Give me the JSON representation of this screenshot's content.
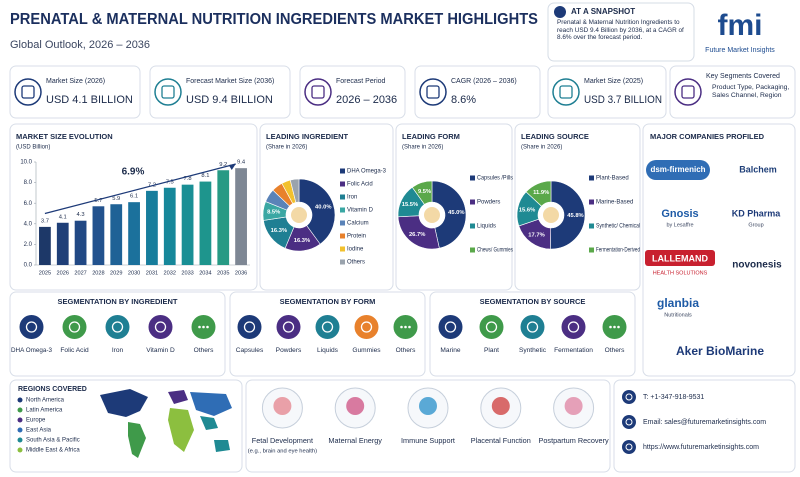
{
  "header": {
    "title": "PRENATAL & MATERNAL NUTRITION INGREDIENTS MARKET HIGHLIGHTS",
    "subtitle": "Global Outlook, 2026 – 2036"
  },
  "snapshot": {
    "title": "AT A SNAPSHOT",
    "text": "Prenatal & Maternal Nutrition Ingredients to reach USD 9.4 Billion by 2036, at a CAGR of 8.6% over the forecast period."
  },
  "logo": {
    "mark": "fmi",
    "name": "Future Market Insights"
  },
  "kpis": [
    {
      "label": "Market Size (2026)",
      "value": "USD 4.1 BILLION"
    },
    {
      "label": "Forecast Market Size (2036)",
      "value": "USD 9.4 BILLION"
    },
    {
      "label": "Forecast Period",
      "value": "2026 – 2036"
    },
    {
      "label": "CAGR (2026 – 2036)",
      "value": "8.6%"
    },
    {
      "label": "Market Size (2025)",
      "value": "USD 3.7 BILLION"
    },
    {
      "label": "Key Segments Covered",
      "value": "Product Type, Packaging, Sales Channel, Region"
    }
  ],
  "chart_data": [
    {
      "type": "bar",
      "title": "MARKET SIZE EVOLUTION",
      "subtitle": "(USD Billion)",
      "annotation": "6.9%",
      "categories": [
        "2025",
        "2026",
        "2027",
        "2028",
        "2029",
        "2030",
        "2031",
        "2032",
        "2033",
        "2034",
        "2035",
        "2036"
      ],
      "values": [
        3.7,
        4.1,
        4.3,
        5.7,
        5.9,
        6.1,
        7.2,
        7.5,
        7.8,
        8.1,
        9.2,
        9.4
      ],
      "colors": [
        "#1d3868",
        "#1f3f78",
        "#214884",
        "#22528e",
        "#1f6296",
        "#1b719c",
        "#177d9c",
        "#16879a",
        "#198f95",
        "#1e958d",
        "#279a84",
        "#7e8794"
      ],
      "ylim": [
        0,
        10
      ],
      "yticks": [
        {
          "value": 0,
          "label": "0.0"
        },
        {
          "value": 2,
          "label": "2.0"
        },
        {
          "value": 4,
          "label": "4.0"
        },
        {
          "value": 6,
          "label": "6.0"
        },
        {
          "value": 8,
          "label": "8.0"
        },
        {
          "value": 10,
          "label": "10.0"
        }
      ]
    },
    {
      "type": "pie",
      "title": "LEADING INGREDIENT",
      "subtitle": "(Share in 2026)",
      "categories": [
        "DHA Omega-3",
        "Folic Acid",
        "Iron",
        "Vitamin D",
        "Calcium",
        "Protein",
        "Iodine",
        "Others"
      ],
      "values": [
        40.0,
        16.3,
        16.3,
        8.5,
        6.0,
        5.0,
        4.0,
        3.9
      ],
      "value_labels": [
        "40.0%",
        "16.3%",
        "16.3%",
        "8.5%",
        null,
        null,
        null,
        null
      ],
      "colors": [
        "#1d3a78",
        "#4b2e83",
        "#1f7f93",
        "#3aa7a3",
        "#5a83b8",
        "#e8812c",
        "#f2c12e",
        "#9aa3ad"
      ]
    },
    {
      "type": "pie",
      "title": "LEADING FORM",
      "subtitle": "(Share in 2026)",
      "categories": [
        "Capsules /Pills",
        "Powders",
        "Liquids",
        "Chews/ Gummies"
      ],
      "values": [
        45.0,
        26.7,
        15.5,
        9.5
      ],
      "value_labels": [
        "45.0%",
        "26.7%",
        "15.5%",
        "9.5%"
      ],
      "colors": [
        "#1d3a78",
        "#4b2e83",
        "#1f8a93",
        "#5aa84a"
      ]
    },
    {
      "type": "pie",
      "title": "LEADING SOURCE",
      "subtitle": "(Share in 2026)",
      "categories": [
        "Plant-Based",
        "Marine-Based",
        "Synthetic/ Chemical",
        "Fermentation-Derived"
      ],
      "values": [
        45.8,
        17.7,
        15.6,
        11.9
      ],
      "value_labels": [
        "45.8%",
        "17.7%",
        "15.6%",
        "11.9%"
      ],
      "colors": [
        "#1d3a78",
        "#4b2e83",
        "#1f8a93",
        "#5aa84a"
      ]
    }
  ],
  "companies": {
    "title": "MAJOR COMPANIES PROFILED",
    "items": [
      {
        "name": "dsm-firmenich"
      },
      {
        "name": "Balchem"
      },
      {
        "name": "Gnosis",
        "sub": "by Lesaffre"
      },
      {
        "name": "KD Pharma",
        "sub": "Group"
      },
      {
        "name": "LALLEMAND",
        "sub": "HEALTH SOLUTIONS"
      },
      {
        "name": "novonesis"
      },
      {
        "name": "glanbia",
        "sub": "Nutritionals"
      },
      {
        "name": "Aker BioMarine"
      }
    ]
  },
  "segmentation": [
    {
      "title": "SEGMENTATION BY INGREDIENT",
      "items": [
        "DHA Omega-3",
        "Folic Acid",
        "Iron",
        "Vitamin D",
        "Others"
      ]
    },
    {
      "title": "SEGMENTATION BY FORM",
      "items": [
        "Capsules",
        "Powders",
        "Liquids",
        "Gummies",
        "Others"
      ]
    },
    {
      "title": "SEGMENTATION BY SOURCE",
      "items": [
        "Marine",
        "Plant",
        "Synthetic",
        "Fermentation",
        "Others"
      ]
    }
  ],
  "regions": {
    "title": "REGIONS COVERED",
    "items": [
      "North America",
      "Latin America",
      "Europe",
      "East Asia",
      "South Asia & Pacific",
      "Middle East & Africa"
    ]
  },
  "health_benefits": [
    {
      "label": "Fetal Development",
      "note": "(e.g., brain and eye health)"
    },
    {
      "label": "Maternal Energy"
    },
    {
      "label": "Immune Support"
    },
    {
      "label": "Placental Function"
    },
    {
      "label": "Postpartum Recovery"
    }
  ],
  "contact": {
    "phone": "T: +1-347-918-9531",
    "email": "Email: sales@futuremarketinsights.com",
    "website": "https://www.futuremarketinsights.com"
  }
}
